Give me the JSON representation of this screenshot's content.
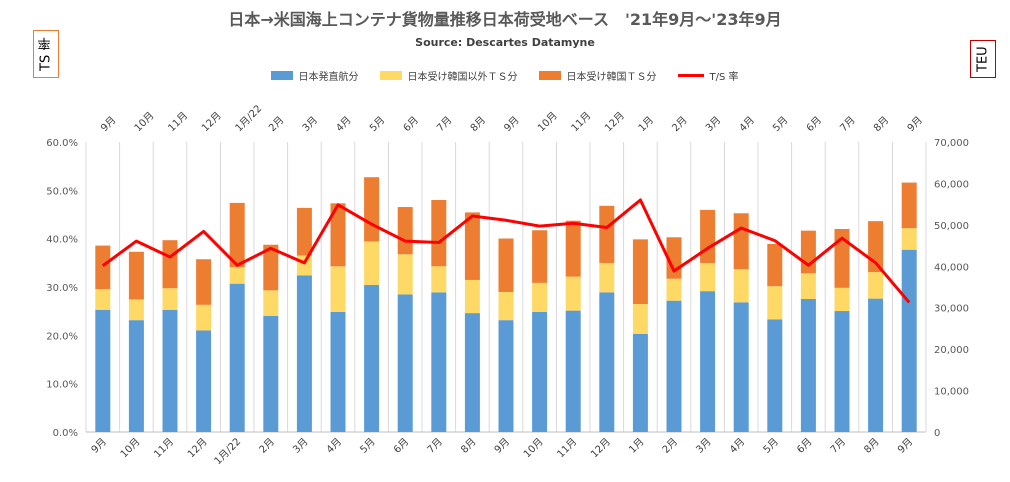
{
  "chart_data": {
    "type": "bar",
    "stacked": true,
    "title": "日本→米国海上コンテナ貨物量推移日本荷受地ベース　'21年9月～'23年9月",
    "subtitle": "Source: Descartes Datamyne",
    "ylabel_left": "TS 率",
    "ylabel_right": "TEU",
    "categories": [
      "9月",
      "10月",
      "11月",
      "12月",
      "1月/22",
      "2月",
      "3月",
      "4月",
      "5月",
      "6月",
      "7月",
      "8月",
      "9月",
      "10月",
      "11月",
      "12月",
      "1月",
      "2月",
      "3月",
      "4月",
      "5月",
      "6月",
      "7月",
      "8月",
      "9月"
    ],
    "series": [
      {
        "name": "日本発直航分",
        "color": "#5b9bd5",
        "axis": "right",
        "values": [
          29500,
          27000,
          29500,
          24500,
          35800,
          28000,
          37800,
          29000,
          35500,
          33200,
          33700,
          28700,
          27000,
          29000,
          29300,
          33700,
          23700,
          31700,
          34000,
          31300,
          27200,
          32100,
          29200,
          32200,
          44000
        ]
      },
      {
        "name": "日本受け韓国以外ＴＳ分",
        "color": "#ffd966",
        "axis": "right",
        "values": [
          5000,
          5000,
          5200,
          6200,
          4000,
          6200,
          4800,
          11000,
          10500,
          9700,
          6300,
          8000,
          6800,
          7000,
          8200,
          7100,
          7200,
          5300,
          6800,
          8000,
          8000,
          6200,
          5600,
          6400,
          5200
        ]
      },
      {
        "name": "日本受け韓国ＴＳ分",
        "color": "#ed7d31",
        "axis": "right",
        "values": [
          10500,
          11500,
          11600,
          11000,
          15500,
          11000,
          11500,
          15200,
          15500,
          11400,
          16000,
          16300,
          12900,
          12700,
          13500,
          13800,
          15600,
          10000,
          12800,
          13500,
          10200,
          10300,
          14200,
          12300,
          11000
        ]
      },
      {
        "name": "T/S 率",
        "color": "#ff0000",
        "axis": "left",
        "type": "line",
        "values": [
          34.4,
          39.5,
          36.2,
          41.5,
          34.5,
          38.0,
          35.0,
          47.0,
          43.0,
          39.5,
          39.2,
          44.7,
          43.8,
          42.6,
          43.2,
          42.3,
          48.0,
          33.3,
          38.0,
          42.2,
          39.6,
          34.5,
          40.1,
          35.0,
          26.8
        ]
      }
    ],
    "y_left": {
      "min": 0,
      "max": 60,
      "step": 10,
      "ticks": [
        "0.0%",
        "10.0%",
        "20.0%",
        "30.0%",
        "40.0%",
        "50.0%",
        "60.0%"
      ]
    },
    "y_right": {
      "min": 0,
      "max": 70000,
      "step": 10000,
      "ticks": [
        "0",
        "10,000",
        "20,000",
        "30,000",
        "40,000",
        "50,000",
        "60,000",
        "70,000"
      ]
    },
    "grid": "vertical",
    "legend_position": "top",
    "top_labels": true
  }
}
